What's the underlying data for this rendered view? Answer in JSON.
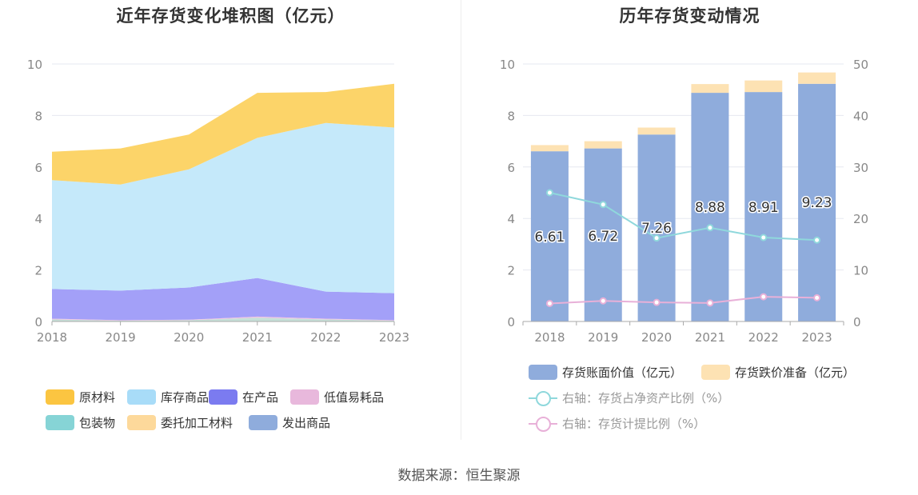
{
  "source_text": "数据来源：恒生聚源",
  "chart_data": [
    {
      "type": "area",
      "title": "近年存货变化堆积图（亿元）",
      "x": [
        "2018",
        "2019",
        "2020",
        "2021",
        "2022",
        "2023"
      ],
      "ylim": [
        0,
        10
      ],
      "yticks": [
        0,
        2,
        4,
        6,
        8,
        10
      ],
      "stacked": true,
      "series": [
        {
          "name": "原材料",
          "values": [
            1.1,
            1.4,
            1.35,
            1.75,
            1.2,
            1.7
          ],
          "color": "#fcd469"
        },
        {
          "name": "库存商品",
          "values": [
            4.23,
            4.12,
            4.59,
            5.44,
            6.55,
            6.43
          ],
          "color": "#c5e9fa"
        },
        {
          "name": "在产品",
          "values": [
            1.15,
            1.15,
            1.25,
            1.5,
            1.05,
            1.05
          ],
          "color": "#a3a0f8"
        },
        {
          "name": "低值易耗品",
          "values": [
            0.03,
            0.02,
            0.02,
            0.04,
            0.03,
            0.02
          ],
          "color": "#f0c0e0"
        },
        {
          "name": "包装物",
          "values": [
            0.08,
            0.03,
            0.05,
            0.15,
            0.08,
            0.03
          ],
          "color": "#c6e0d8"
        },
        {
          "name": "委托加工材料",
          "values": [
            0,
            0,
            0,
            0,
            0,
            0
          ],
          "color": "#fdd99b"
        },
        {
          "name": "发出商品",
          "values": [
            0,
            0,
            0,
            0,
            0,
            0
          ],
          "color": "#8facdc"
        }
      ],
      "legend": [
        {
          "name": "原材料",
          "color": "#fbc541"
        },
        {
          "name": "库存商品",
          "color": "#a8dcf8"
        },
        {
          "name": "在产品",
          "color": "#7b7bf0"
        },
        {
          "name": "低值易耗品",
          "color": "#e8b8dc"
        },
        {
          "name": "包装物",
          "color": "#86d4d6"
        },
        {
          "name": "委托加工材料",
          "color": "#fdd99b"
        },
        {
          "name": "发出商品",
          "color": "#8facdc"
        }
      ]
    },
    {
      "type": "bar",
      "title": "历年存货变动情况",
      "categories": [
        "2018",
        "2019",
        "2020",
        "2021",
        "2022",
        "2023"
      ],
      "ylim": [
        0,
        10
      ],
      "yticks": [
        0,
        2,
        4,
        6,
        8,
        10
      ],
      "y2lim": [
        0,
        50
      ],
      "y2ticks": [
        0,
        10,
        20,
        30,
        40,
        50
      ],
      "stacked": true,
      "series": [
        {
          "name": "存货账面价值（亿元）",
          "values": [
            6.61,
            6.72,
            7.26,
            8.88,
            8.91,
            9.23
          ],
          "color": "#8facdc",
          "labels": [
            "6.61",
            "6.72",
            "7.26",
            "8.88",
            "8.91",
            "9.23"
          ]
        },
        {
          "name": "存货跌价准备（亿元）",
          "values": [
            0.24,
            0.28,
            0.27,
            0.34,
            0.45,
            0.44
          ],
          "color": "#fde2b3"
        }
      ],
      "lines": [
        {
          "name": "右轴：存货占净资产比例（%）",
          "axis": "right",
          "values": [
            25.0,
            22.7,
            16.2,
            18.2,
            16.3,
            15.8
          ],
          "color": "#8fd8dc"
        },
        {
          "name": "右轴：存货计提比例（%）",
          "axis": "right",
          "values": [
            3.5,
            4.0,
            3.7,
            3.6,
            4.8,
            4.6
          ],
          "color": "#e8b0d8"
        }
      ]
    }
  ]
}
